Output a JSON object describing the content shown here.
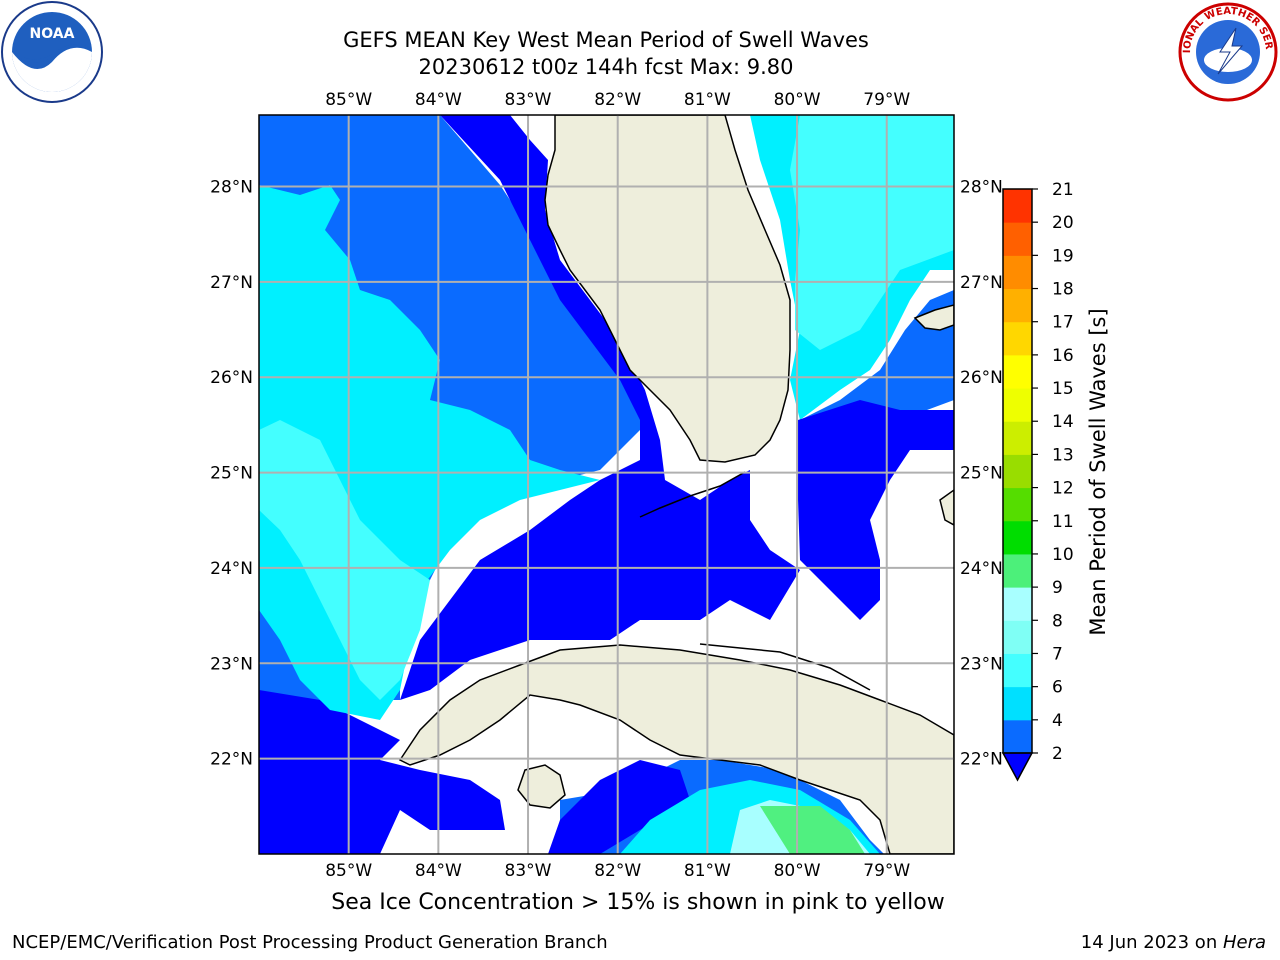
{
  "header": {
    "title_line1": "GEFS MEAN Key West Mean Period of Swell Waves",
    "title_line2": "20230612 t00z 144h fcst   Max: 9.80"
  },
  "logos": {
    "left": "NOAA",
    "right": "NATIONAL WEATHER SERVICE"
  },
  "map": {
    "lon_labels": [
      "85°W",
      "84°W",
      "83°W",
      "82°W",
      "81°W",
      "80°W",
      "79°W"
    ],
    "lat_labels": [
      "28°N",
      "27°N",
      "26°N",
      "25°N",
      "24°N",
      "23°N",
      "22°N"
    ],
    "lon_range": [
      -86.0,
      -78.25
    ],
    "lat_range": [
      21.0,
      28.75
    ]
  },
  "colorbar": {
    "label": "Mean Period of Swell Waves [s]",
    "ticks": [
      "2",
      "4",
      "6",
      "7",
      "8",
      "9",
      "10",
      "11",
      "12",
      "13",
      "14",
      "15",
      "16",
      "17",
      "18",
      "19",
      "20",
      "21"
    ],
    "colors": [
      "#0a6bff",
      "#00e0ff",
      "#44ffff",
      "#7ffff5",
      "#a8ffff",
      "#4cf07a",
      "#00dd00",
      "#55dd00",
      "#99dd00",
      "#ccee00",
      "#eeff00",
      "#ffff00",
      "#ffd700",
      "#ffb000",
      "#ff8c00",
      "#ff6000",
      "#ff3300",
      "#ff0000"
    ],
    "under_color": "#0000ff"
  },
  "colors": {
    "land": "#eeeedc",
    "deep_blue": "#0000ff",
    "blue": "#0a6bff",
    "cyan": "#00f0ff",
    "light_cyan": "#44ffff",
    "pale_cyan": "#a8ffff",
    "green": "#50f080",
    "grid": "#b0b0b0"
  },
  "caption": "Sea Ice Concentration > 15% is shown in pink to yellow",
  "footer": {
    "left": "NCEP/EMC/Verification Post Processing Product Generation Branch",
    "right_date": "14 Jun 2023 on ",
    "right_host": "Hera"
  }
}
